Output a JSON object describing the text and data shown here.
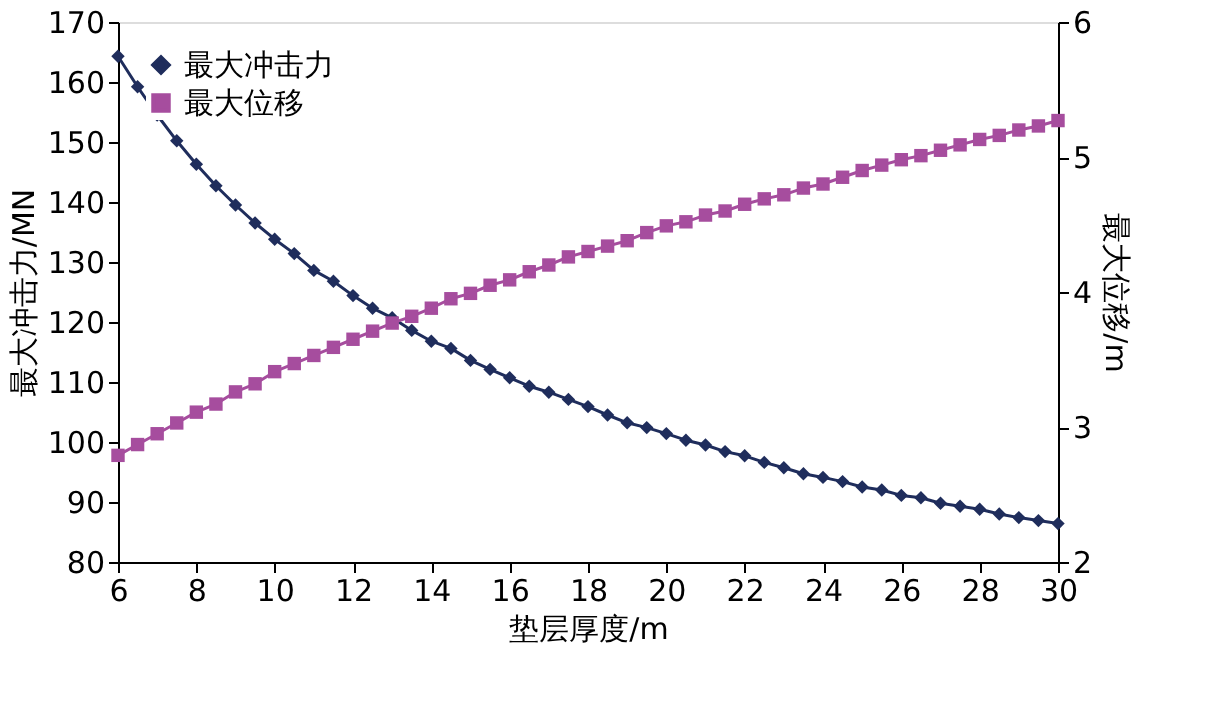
{
  "chart_data": {
    "type": "line",
    "xlabel": "垫层厚度/m",
    "ylabel": "最大冲击力/MN",
    "y2label": "最大位移/m",
    "x": [
      6,
      6.5,
      7,
      7.5,
      8,
      8.5,
      9,
      9.5,
      10,
      10.5,
      11,
      11.5,
      12,
      12.5,
      13,
      13.5,
      14,
      14.5,
      15,
      15.5,
      16,
      16.5,
      17,
      17.5,
      18,
      18.5,
      19,
      19.5,
      20,
      20.5,
      21,
      21.5,
      22,
      22.5,
      23,
      23.5,
      24,
      24.5,
      25,
      25.5,
      26,
      26.5,
      27,
      27.5,
      28,
      28.5,
      29,
      29.5,
      30
    ],
    "series": [
      {
        "name": "最大冲击力",
        "color": "#1f2d5c",
        "marker": "diamond",
        "values": [
          164.3,
          159.2,
          154.5,
          150.2,
          146.3,
          142.7,
          139.5,
          136.5,
          133.8,
          131.4,
          128.6,
          126.8,
          124.4,
          122.3,
          120.7,
          118.6,
          116.8,
          115.6,
          113.6,
          112.1,
          110.7,
          109.3,
          108.3,
          107.1,
          105.9,
          104.5,
          103.2,
          102.4,
          101.4,
          100.3,
          99.5,
          98.4,
          97.7,
          96.6,
          95.7,
          94.7,
          94.1,
          93.4,
          92.5,
          92.0,
          91.1,
          90.7,
          89.8,
          89.3,
          88.8,
          88.0,
          87.4,
          86.9,
          86.4
        ]
      },
      {
        "name": "最大位移",
        "color": "#a64d9e",
        "marker": "square",
        "axis": "y2",
        "values": [
          2.79,
          2.87,
          2.95,
          3.03,
          3.11,
          3.17,
          3.26,
          3.32,
          3.41,
          3.47,
          3.53,
          3.59,
          3.65,
          3.71,
          3.77,
          3.82,
          3.88,
          3.95,
          3.99,
          4.05,
          4.09,
          4.15,
          4.2,
          4.26,
          4.3,
          4.34,
          4.38,
          4.44,
          4.49,
          4.52,
          4.57,
          4.6,
          4.65,
          4.69,
          4.72,
          4.77,
          4.8,
          4.85,
          4.9,
          4.94,
          4.98,
          5.01,
          5.05,
          5.09,
          5.13,
          5.16,
          5.2,
          5.23,
          5.27
        ]
      }
    ],
    "xlim": [
      6,
      30
    ],
    "xticks": [
      6,
      8,
      10,
      12,
      14,
      16,
      18,
      20,
      22,
      24,
      26,
      28,
      30
    ],
    "ylim": [
      80,
      170
    ],
    "yticks": [
      80,
      90,
      100,
      110,
      120,
      130,
      140,
      150,
      160,
      170
    ],
    "y2lim": [
      2,
      6
    ],
    "y2ticks": [
      2,
      3,
      4,
      5,
      6
    ],
    "grid": false,
    "legend": "top left"
  }
}
